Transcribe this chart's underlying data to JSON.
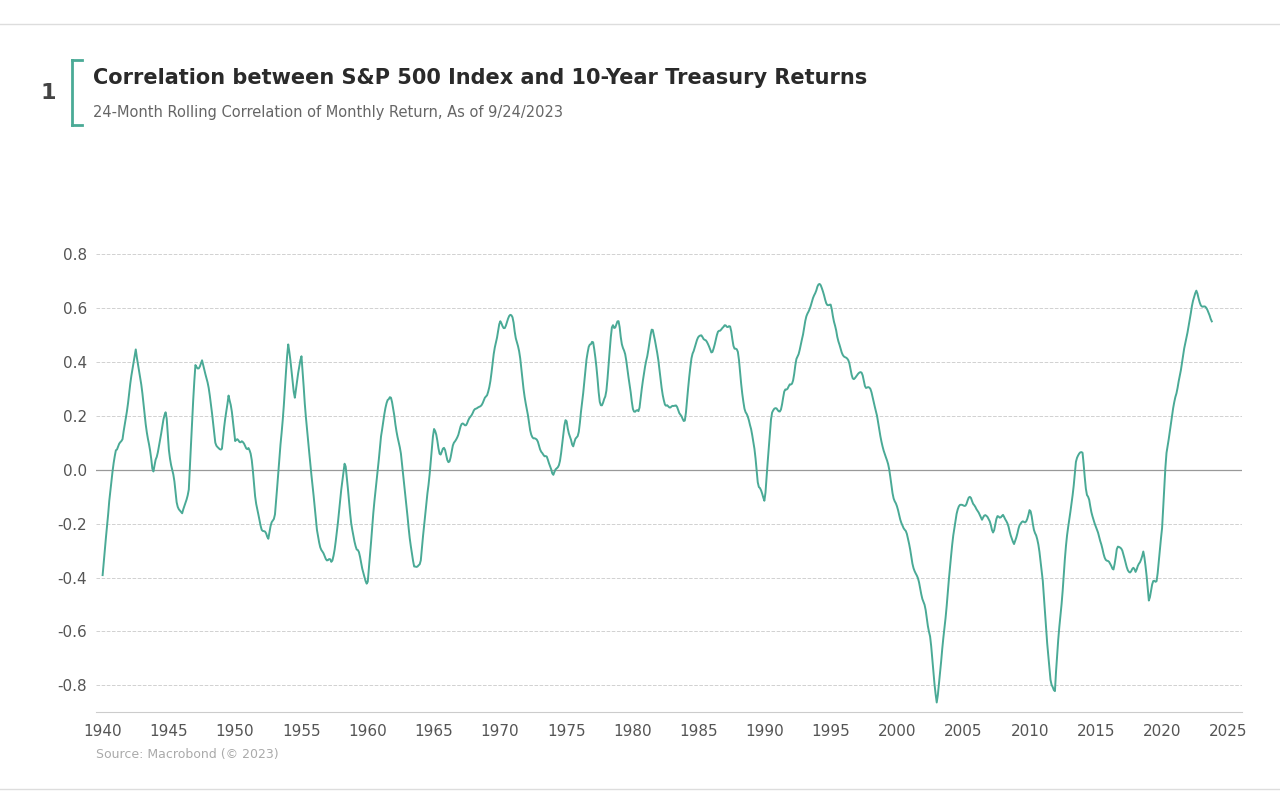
{
  "title": "Correlation between S&P 500 Index and 10-Year Treasury Returns",
  "subtitle": "24-Month Rolling Correlation of Monthly Return, As of 9/24/2023",
  "source": "Source: Macrobond (© 2023)",
  "number_label": "1",
  "line_color": "#4aaa96",
  "background_color": "#ffffff",
  "zero_line_color": "#999999",
  "grid_color": "#cccccc",
  "ylim": [
    -0.9,
    0.95
  ],
  "yticks": [
    -0.8,
    -0.6,
    -0.4,
    -0.2,
    0.0,
    0.2,
    0.4,
    0.6,
    0.8
  ],
  "xlim": [
    1939.5,
    2026.0
  ],
  "xticks": [
    1940,
    1945,
    1950,
    1955,
    1960,
    1965,
    1970,
    1975,
    1980,
    1985,
    1990,
    1995,
    2000,
    2005,
    2010,
    2015,
    2020,
    2025
  ]
}
